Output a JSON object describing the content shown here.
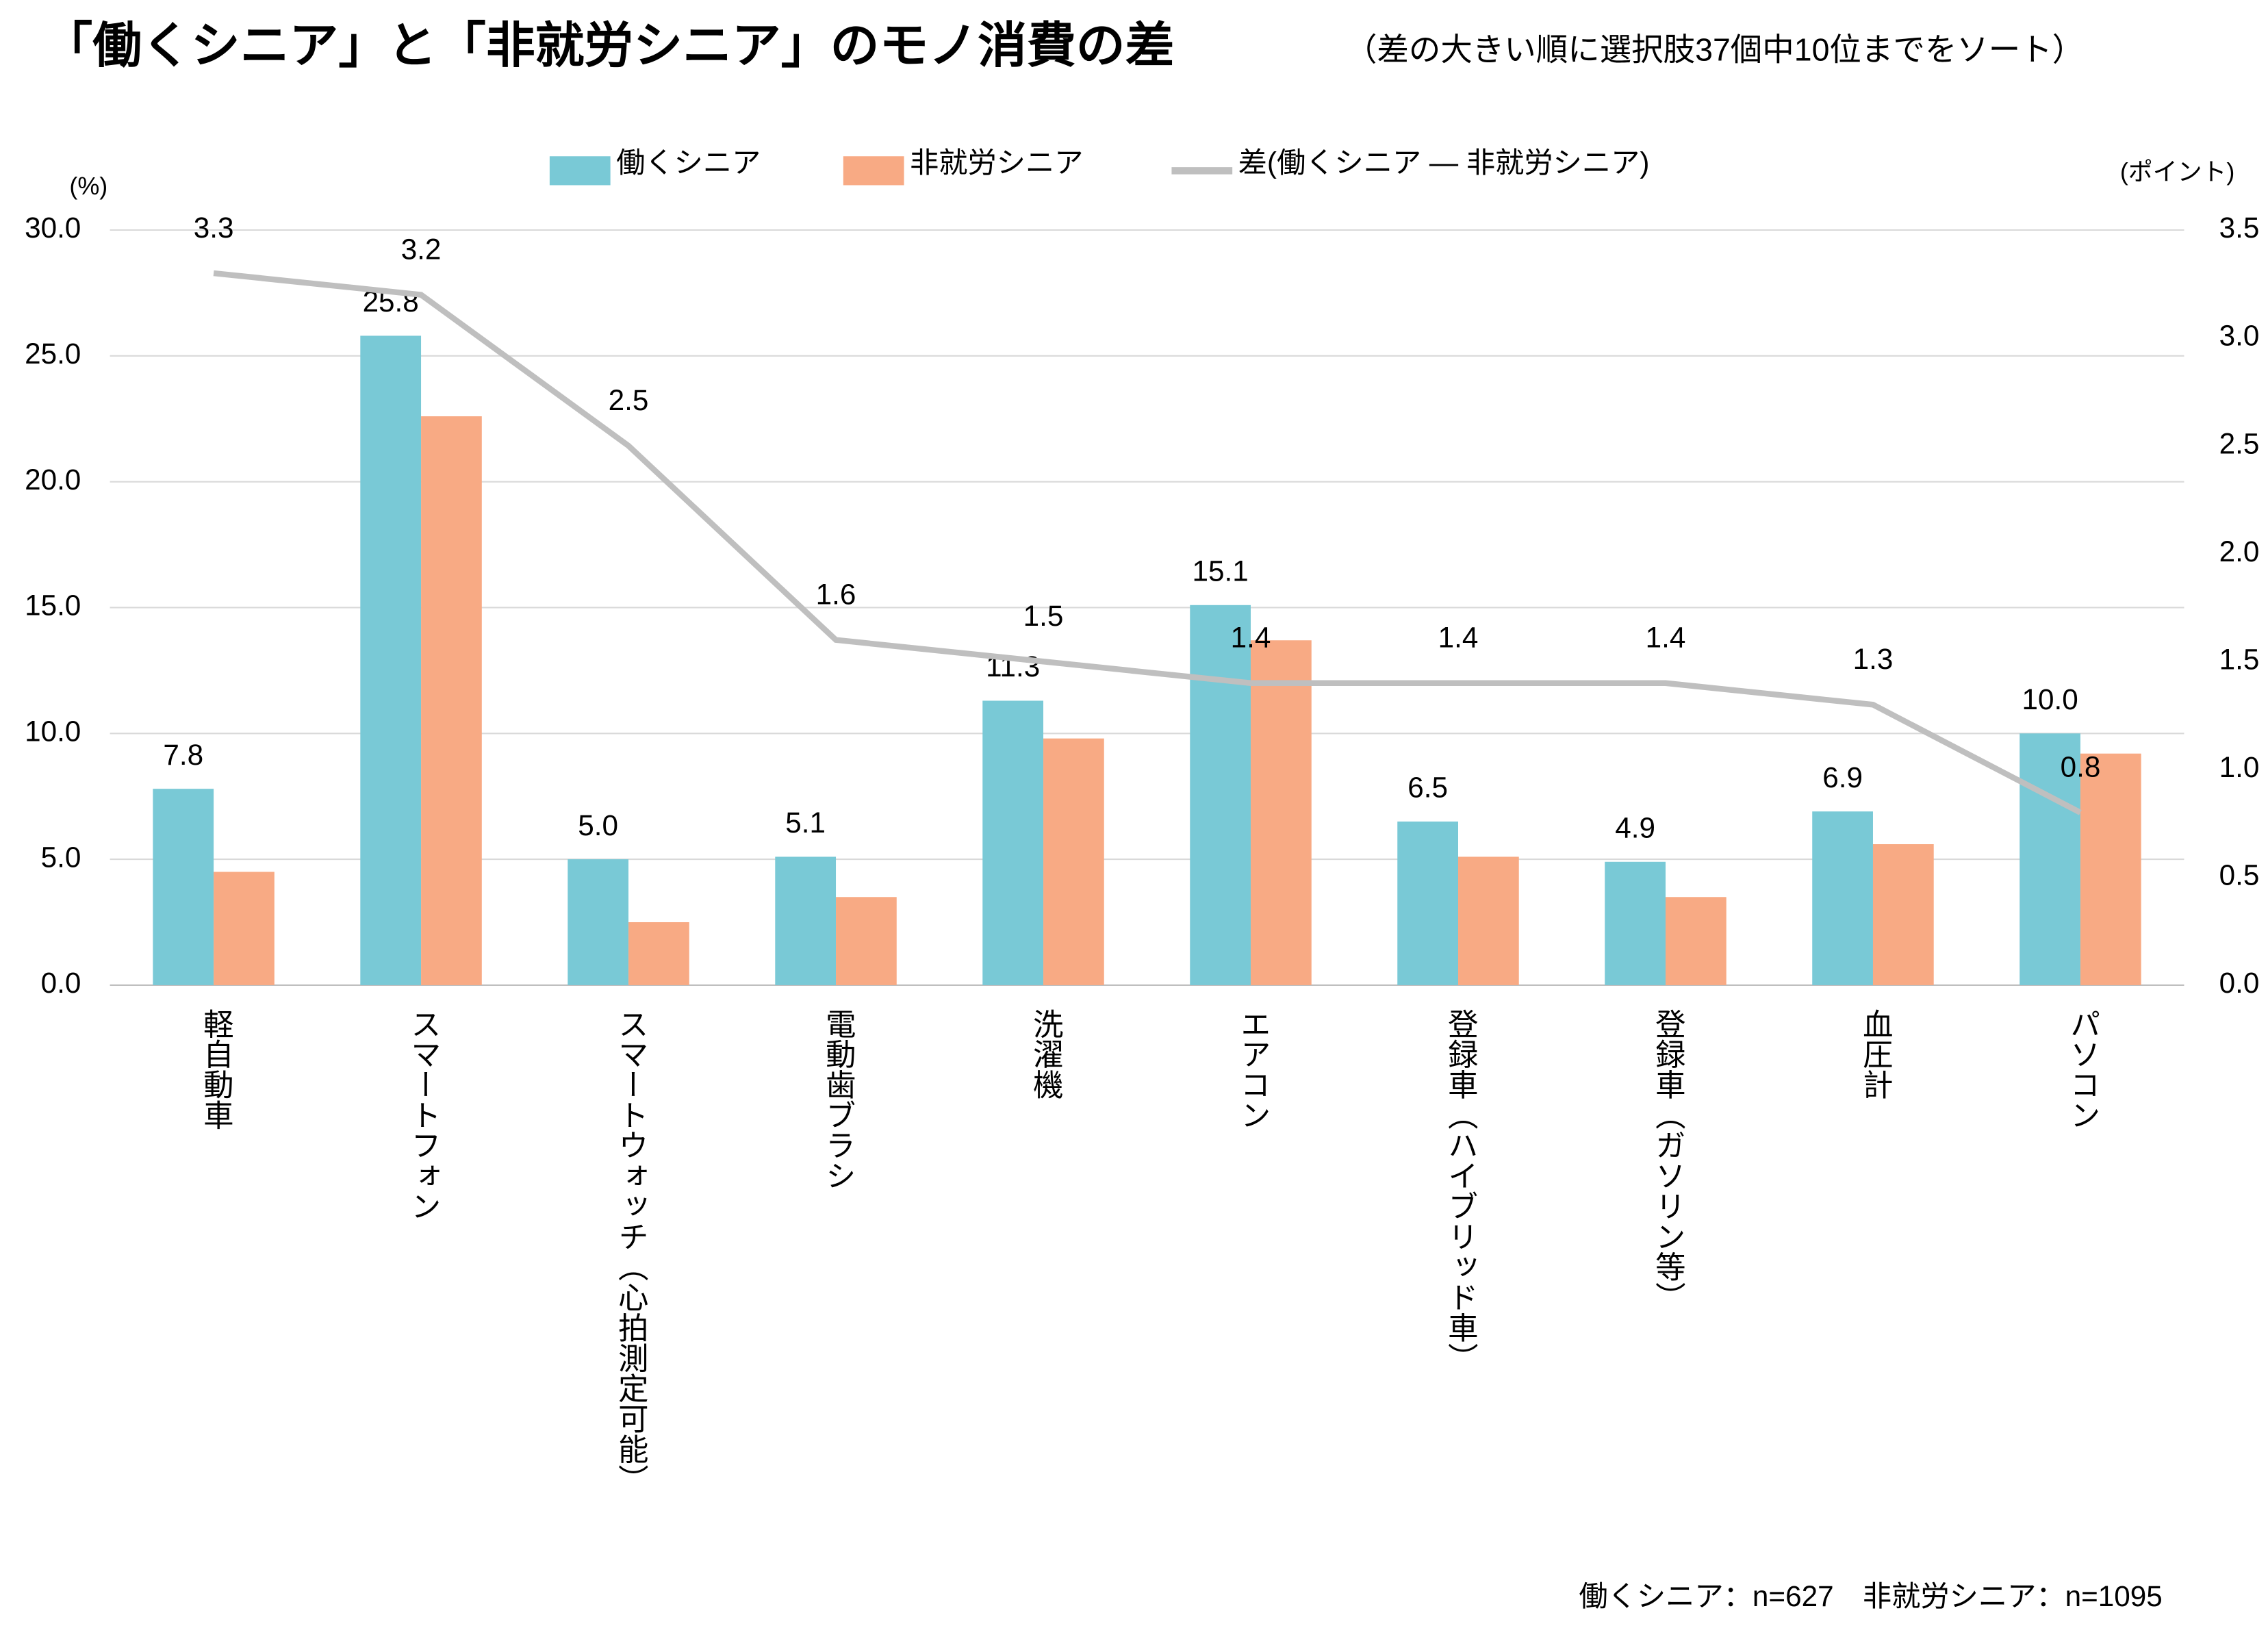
{
  "chart_data": {
    "type": "bar",
    "title": "「働くシニア」と「非就労シニア」のモノ消費の差",
    "subtitle": "（差の大きい順に選択肢37個中10位までをソート）",
    "y_unit": "(%)",
    "y2_unit": "(ポイント)",
    "note": "働くシニア：n=627　非就労シニア：n=1095",
    "categories": [
      "軽自動車",
      "スマートフォン",
      "スマートウォッチ（心拍測定可能）",
      "電動歯ブラシ",
      "洗濯機",
      "エアコン",
      "登録車（ハイブリッド車）",
      "登録車（ガソリン等）",
      "血圧計",
      "パソコン"
    ],
    "series": [
      {
        "name": "働くシニア",
        "color": "#79c9d6",
        "values": [
          7.8,
          25.8,
          5.0,
          5.1,
          11.3,
          15.1,
          6.5,
          4.9,
          6.9,
          10.0
        ],
        "value_labels": [
          "7.8",
          "25.8",
          "5.0",
          "5.1",
          "11.3",
          "15.1",
          "6.5",
          "4.9",
          "6.9",
          "10.0"
        ]
      },
      {
        "name": "非就労シニア",
        "color": "#f8aa84",
        "values": [
          4.5,
          22.6,
          2.5,
          3.5,
          9.8,
          13.7,
          5.1,
          3.5,
          5.6,
          9.2
        ]
      },
      {
        "name": "差(働くシニア ― 非就労シニア)",
        "color": "#bfbfbf",
        "type": "line",
        "axis": "y2",
        "values": [
          3.3,
          3.2,
          2.5,
          1.6,
          1.5,
          1.4,
          1.4,
          1.4,
          1.3,
          0.8
        ]
      }
    ],
    "ylim": [
      0,
      30
    ],
    "yticks": [
      {
        "value": 0,
        "label": "0.0"
      },
      {
        "value": 5,
        "label": "5.0"
      },
      {
        "value": 10,
        "label": "10.0"
      },
      {
        "value": 15,
        "label": "15.0"
      },
      {
        "value": 20,
        "label": "20.0"
      },
      {
        "value": 25,
        "label": "25.0"
      },
      {
        "value": 30,
        "label": "30.0"
      }
    ],
    "y2lim": [
      0,
      3.5
    ],
    "y2ticks": [
      {
        "value": 0,
        "label": "0.0"
      },
      {
        "value": 0.5,
        "label": "0.5"
      },
      {
        "value": 1,
        "label": "1.0"
      },
      {
        "value": 1.5,
        "label": "1.5"
      },
      {
        "value": 2,
        "label": "2.0"
      },
      {
        "value": 2.5,
        "label": "2.5"
      },
      {
        "value": 3,
        "label": "3.0"
      },
      {
        "value": 3.5,
        "label": "3.5"
      }
    ],
    "grid": true,
    "legend": "top"
  }
}
